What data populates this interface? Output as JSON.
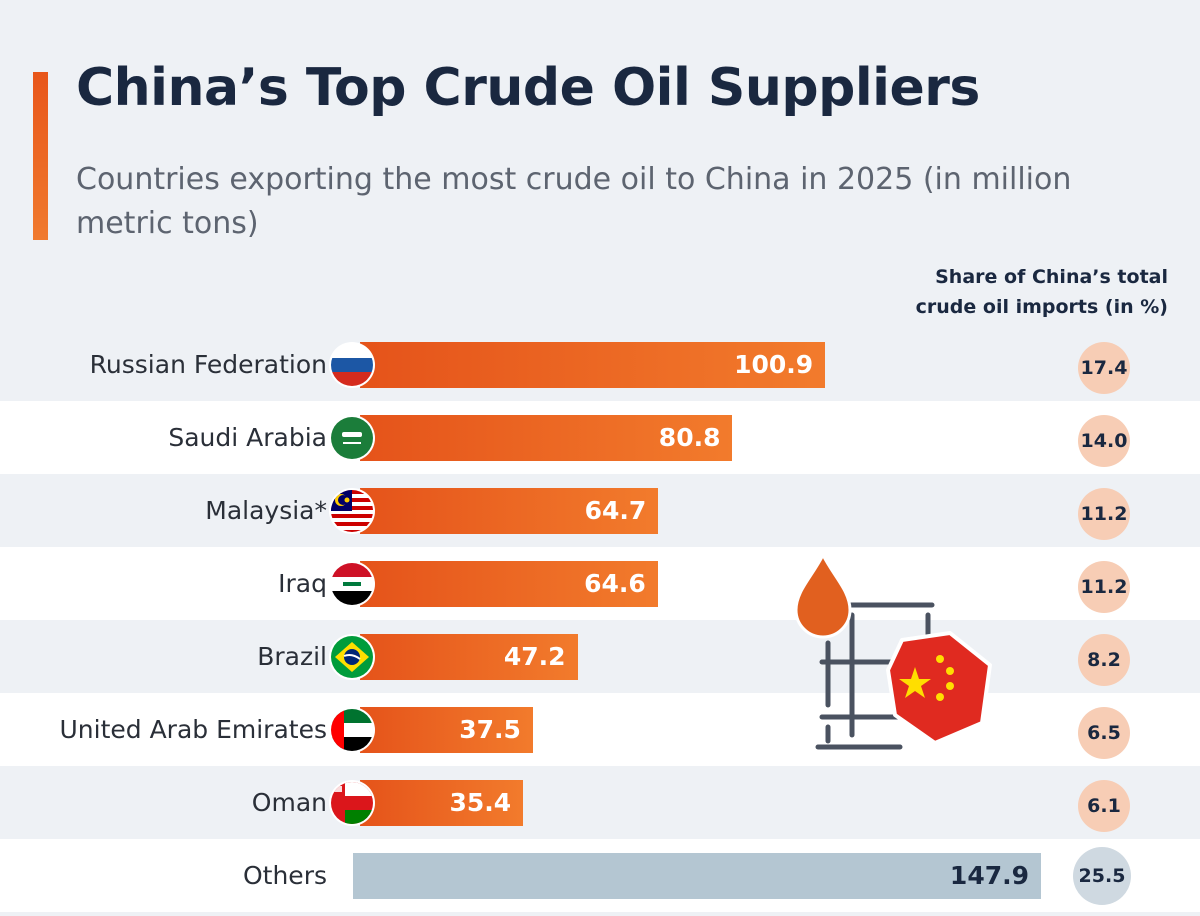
{
  "title": "China’s Top Crude Oil Suppliers",
  "subtitle": "Countries exporting the most crude oil to China in 2025 (in million metric tons)",
  "share_header": "Share of China’s total\ncrude oil imports (in %)",
  "colors": {
    "accent": "#e8561a",
    "bar": "#ef6f26",
    "others_bar": "#b4c6d2",
    "share_circle": "#f7cdb5",
    "title": "#1a2840"
  },
  "chart_data": {
    "type": "bar",
    "orientation": "horizontal",
    "title": "China’s Top Crude Oil Suppliers",
    "subtitle": "Countries exporting the most crude oil to China in 2025 (in million metric tons)",
    "categories": [
      "Russian Federation",
      "Saudi Arabia",
      "Malaysia*",
      "Iraq",
      "Brazil",
      "United Arab Emirates",
      "Oman",
      "Others"
    ],
    "values": [
      100.9,
      80.8,
      64.7,
      64.6,
      47.2,
      37.5,
      35.4,
      147.9
    ],
    "value_labels": [
      "100.9",
      "80.8",
      "64.7",
      "64.6",
      "47.2",
      "37.5",
      "35.4",
      "147.9"
    ],
    "share_labels": [
      "17.4",
      "14.0",
      "11.2",
      "11.2",
      "8.2",
      "6.5",
      "6.1",
      "25.5"
    ],
    "share_values": [
      17.4,
      14.0,
      11.2,
      11.2,
      8.2,
      6.5,
      6.1,
      25.5
    ],
    "flags": [
      "russia-flag-icon",
      "saudi-arabia-flag-icon",
      "malaysia-flag-icon",
      "iraq-flag-icon",
      "brazil-flag-icon",
      "uae-flag-icon",
      "oman-flag-icon",
      ""
    ],
    "xlim": [
      0,
      150
    ],
    "grid": false,
    "legend": "none"
  }
}
